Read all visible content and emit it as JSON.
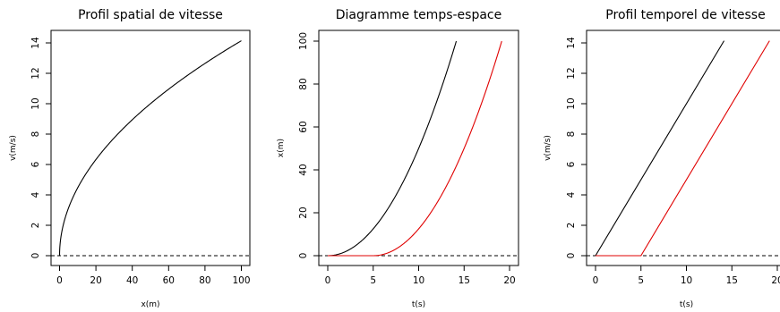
{
  "chart_data": [
    {
      "type": "line",
      "title": "Profil spatial de vitesse",
      "xlabel": "x(m)",
      "ylabel": "v(m/s)",
      "xlim": [
        0,
        100
      ],
      "ylim": [
        0,
        14
      ],
      "x_ticks": [
        "0",
        "20",
        "40",
        "60",
        "80",
        "100"
      ],
      "y_ticks": [
        "0",
        "2",
        "4",
        "6",
        "8",
        "10",
        "12",
        "14"
      ],
      "reference_line": {
        "y": 0,
        "style": "dashed",
        "color": "#000000"
      },
      "series": [
        {
          "color": "#000000",
          "x": [
            0,
            0.5,
            1,
            2,
            3,
            5,
            7.5,
            10,
            15,
            20,
            25,
            30,
            40,
            50,
            60,
            70,
            80,
            90,
            100
          ],
          "y": [
            0,
            1.0,
            1.41,
            2.0,
            2.45,
            3.16,
            3.87,
            4.47,
            5.48,
            6.32,
            7.07,
            7.75,
            8.94,
            10.0,
            10.95,
            11.83,
            12.65,
            13.42,
            14.14
          ]
        }
      ]
    },
    {
      "type": "line",
      "title": "Diagramme temps-espace",
      "xlabel": "t(s)",
      "ylabel": "x(m)",
      "xlim": [
        0,
        20
      ],
      "ylim": [
        0,
        100
      ],
      "x_ticks": [
        "0",
        "5",
        "10",
        "15",
        "20"
      ],
      "y_ticks": [
        "0",
        "20",
        "40",
        "60",
        "80",
        "100"
      ],
      "reference_line": {
        "y": 0,
        "style": "dashed",
        "color": "#000000"
      },
      "series": [
        {
          "color": "#000000",
          "x": [
            0,
            1,
            2,
            3,
            4,
            5,
            6,
            7,
            8,
            9,
            10,
            11,
            12,
            13,
            14,
            14.14
          ],
          "y": [
            0,
            0.5,
            2,
            4.5,
            8,
            12.5,
            18,
            24.5,
            32,
            40.5,
            50,
            60.5,
            72,
            84.5,
            98,
            100
          ]
        },
        {
          "color": "#e00000",
          "x": [
            0,
            5,
            6,
            7,
            8,
            9,
            10,
            11,
            12,
            13,
            14,
            15,
            16,
            17,
            18,
            19,
            19.14
          ],
          "y": [
            0,
            0,
            0.5,
            2,
            4.5,
            8,
            12.5,
            18,
            24.5,
            32,
            40.5,
            50,
            60.5,
            72,
            84.5,
            98,
            100
          ]
        }
      ]
    },
    {
      "type": "line",
      "title": "Profil temporel de vitesse",
      "xlabel": "t(s)",
      "ylabel": "v(m/s)",
      "xlim": [
        0,
        20
      ],
      "ylim": [
        0,
        14
      ],
      "x_ticks": [
        "0",
        "5",
        "10",
        "15",
        "20"
      ],
      "y_ticks": [
        "0",
        "2",
        "4",
        "6",
        "8",
        "10",
        "12",
        "14"
      ],
      "reference_line": {
        "y": 0,
        "style": "dashed",
        "color": "#000000"
      },
      "series": [
        {
          "color": "#000000",
          "x": [
            0,
            14.14
          ],
          "y": [
            0,
            14.14
          ]
        },
        {
          "color": "#e00000",
          "x": [
            0,
            5,
            19.14
          ],
          "y": [
            0,
            0,
            14.14
          ]
        }
      ]
    }
  ]
}
